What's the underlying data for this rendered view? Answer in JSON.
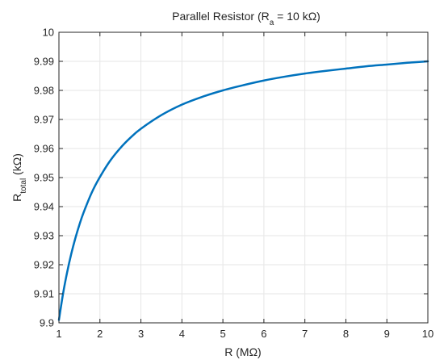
{
  "chart_data": {
    "type": "line",
    "title": {
      "prefix": "Parallel Resistor (R",
      "subscript": "a",
      "suffix": " = 10 kΩ)"
    },
    "xlabel": "R (MΩ)",
    "ylabel": {
      "prefix": "R",
      "subscript": "total",
      "suffix": " (kΩ)"
    },
    "xlim": [
      1,
      10
    ],
    "ylim": [
      9.9,
      10
    ],
    "x_ticks": [
      1,
      2,
      3,
      4,
      5,
      6,
      7,
      8,
      9,
      10
    ],
    "x_tick_labels": [
      "1",
      "2",
      "3",
      "4",
      "5",
      "6",
      "7",
      "8",
      "9",
      "10"
    ],
    "y_ticks": [
      9.9,
      9.91,
      9.92,
      9.93,
      9.94,
      9.95,
      9.96,
      9.97,
      9.98,
      9.99,
      10
    ],
    "y_tick_labels": [
      "9.9",
      "9.91",
      "9.92",
      "9.93",
      "9.94",
      "9.95",
      "9.96",
      "9.97",
      "9.98",
      "9.99",
      "10"
    ],
    "grid": true,
    "series": [
      {
        "color": "#0072BD",
        "x": [
          1,
          1.1,
          1.2,
          1.3,
          1.4,
          1.5,
          1.6,
          1.8,
          2,
          2.25,
          2.5,
          2.75,
          3,
          3.5,
          4,
          4.5,
          5,
          5.5,
          6,
          6.5,
          7,
          7.5,
          8,
          8.5,
          9,
          9.5,
          10
        ],
        "y": [
          9.901,
          9.91,
          9.9174,
          9.9237,
          9.9291,
          9.9338,
          9.9379,
          9.9448,
          9.9502,
          9.9558,
          9.9602,
          9.9638,
          9.9668,
          9.9715,
          9.9751,
          9.9778,
          9.98,
          9.9818,
          9.9834,
          9.9847,
          9.9858,
          9.9867,
          9.9875,
          9.9883,
          9.9889,
          9.9895,
          9.99
        ]
      }
    ]
  }
}
